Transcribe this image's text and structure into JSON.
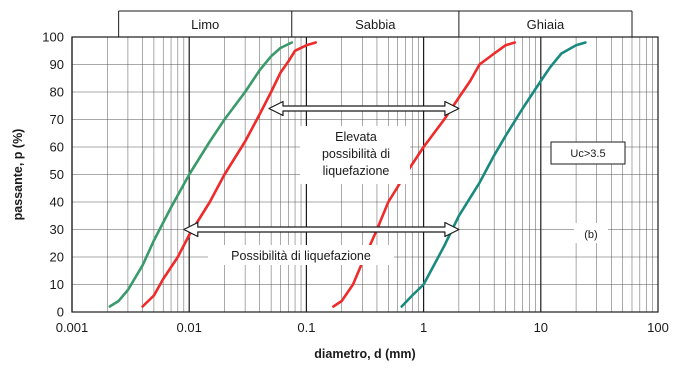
{
  "chart_data": {
    "type": "line",
    "xscale": "log",
    "xlim": [
      0.001,
      100
    ],
    "ylim": [
      0,
      100
    ],
    "grid": true,
    "xlabel": "diametro, d (mm)",
    "ylabel": "passante, p (%)",
    "x_ticks": [
      "0.001",
      "0.01",
      "0.1",
      "1",
      "10",
      "100"
    ],
    "y_ticks": [
      "0",
      "10",
      "20",
      "30",
      "40",
      "50",
      "60",
      "70",
      "80",
      "90",
      "100"
    ],
    "bands": [
      "Limo",
      "Sabbia",
      "Ghiaia"
    ],
    "annotations": {
      "high": [
        "Elevata",
        "possibilità di",
        "liquefazione"
      ],
      "possible": "Possibilità di liquefazione",
      "uc": "Uc>3.5",
      "tag": "(b)"
    },
    "colors": {
      "green": "#3a9a6a",
      "red": "#ee2a2a",
      "teal": "#1a8a80",
      "grid": "#555555"
    },
    "series": [
      {
        "color": "green",
        "points": [
          [
            0.0021,
            2
          ],
          [
            0.0025,
            4
          ],
          [
            0.003,
            8
          ],
          [
            0.004,
            17
          ],
          [
            0.005,
            26
          ],
          [
            0.007,
            38
          ],
          [
            0.01,
            50
          ],
          [
            0.015,
            62
          ],
          [
            0.02,
            70
          ],
          [
            0.03,
            80
          ],
          [
            0.04,
            88
          ],
          [
            0.05,
            93
          ],
          [
            0.06,
            96
          ],
          [
            0.075,
            98
          ]
        ]
      },
      {
        "color": "red",
        "points": [
          [
            0.004,
            2
          ],
          [
            0.005,
            6
          ],
          [
            0.006,
            12
          ],
          [
            0.008,
            20
          ],
          [
            0.01,
            28
          ],
          [
            0.015,
            40
          ],
          [
            0.02,
            50
          ],
          [
            0.03,
            62
          ],
          [
            0.04,
            72
          ],
          [
            0.05,
            80
          ],
          [
            0.06,
            87
          ],
          [
            0.07,
            91
          ],
          [
            0.08,
            95
          ],
          [
            0.1,
            97
          ],
          [
            0.12,
            98
          ]
        ]
      },
      {
        "color": "red",
        "points": [
          [
            0.17,
            2
          ],
          [
            0.2,
            4
          ],
          [
            0.25,
            10
          ],
          [
            0.3,
            18
          ],
          [
            0.4,
            30
          ],
          [
            0.5,
            40
          ],
          [
            0.7,
            50
          ],
          [
            1.0,
            60
          ],
          [
            1.5,
            70
          ],
          [
            2.0,
            78
          ],
          [
            2.5,
            84
          ],
          [
            3.0,
            90
          ],
          [
            4.0,
            94
          ],
          [
            5.0,
            97
          ],
          [
            6.0,
            98
          ]
        ]
      },
      {
        "color": "teal",
        "points": [
          [
            0.65,
            2
          ],
          [
            0.8,
            6
          ],
          [
            1.0,
            10
          ],
          [
            1.5,
            24
          ],
          [
            2.0,
            35
          ],
          [
            3.0,
            47
          ],
          [
            4.0,
            57
          ],
          [
            5.0,
            64
          ],
          [
            7.0,
            74
          ],
          [
            10.0,
            84
          ],
          [
            12.0,
            89
          ],
          [
            15.0,
            94
          ],
          [
            20.0,
            97
          ],
          [
            24.0,
            98
          ]
        ]
      }
    ],
    "arrows": [
      {
        "from": 0.048,
        "to": 2.0,
        "y": 74
      },
      {
        "from": 0.009,
        "to": 2.0,
        "y": 30
      }
    ]
  }
}
